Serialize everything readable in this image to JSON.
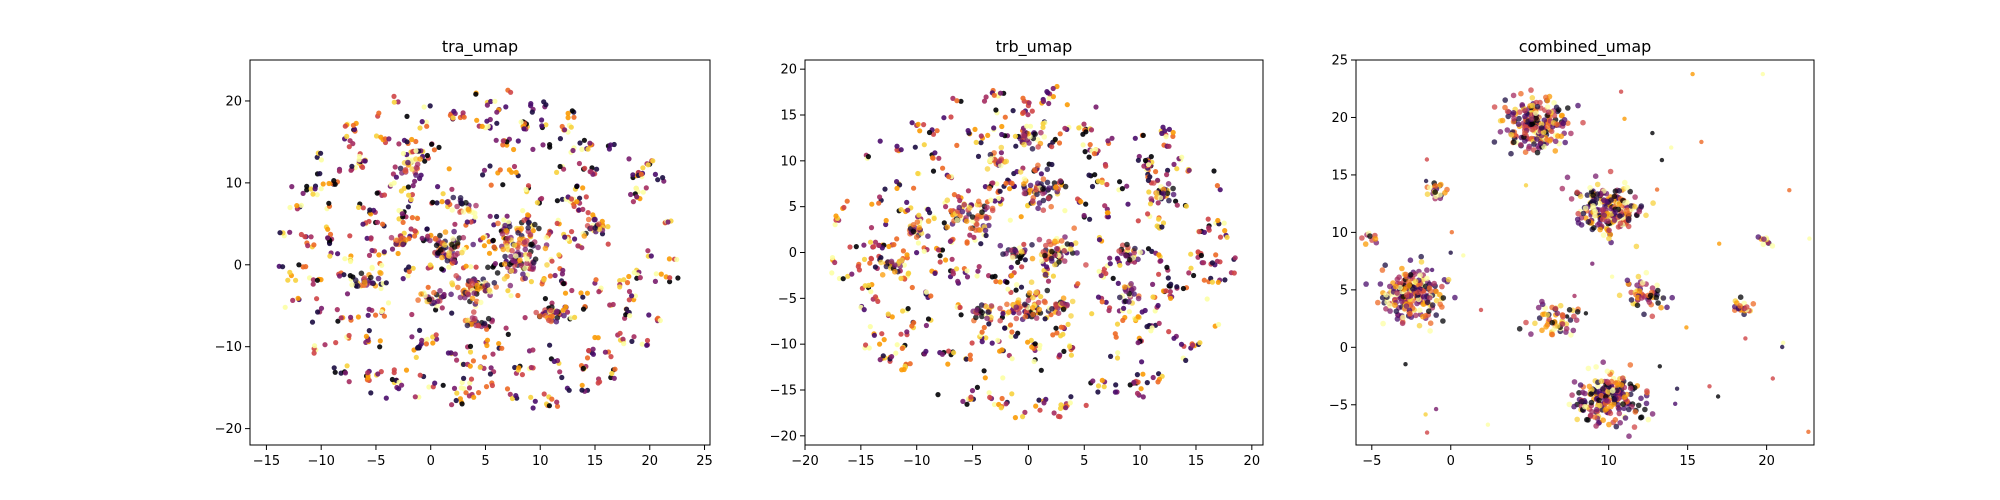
{
  "chart_data": [
    {
      "type": "scatter",
      "title": "tra_umap",
      "xlabel": "",
      "ylabel": "",
      "xlim": [
        -16.5,
        25.5
      ],
      "ylim": [
        -22,
        25
      ],
      "xticks": [
        -15,
        -10,
        -5,
        0,
        5,
        10,
        15,
        20,
        25
      ],
      "yticks": [
        -20,
        -10,
        0,
        10,
        20
      ],
      "grid": false,
      "colormap": "inferno",
      "distribution": "many small clusters spread roughly uniformly in a disk",
      "clusters": [
        {
          "x": 1.5,
          "y": 2,
          "size": "medium"
        },
        {
          "x": 4,
          "y": -3,
          "size": "medium"
        },
        {
          "x": 8,
          "y": 3.5,
          "size": "medium"
        },
        {
          "x": 8,
          "y": 0,
          "size": "medium"
        },
        {
          "x": 3,
          "y": 7,
          "size": "small"
        },
        {
          "x": -3,
          "y": 3,
          "size": "small"
        },
        {
          "x": 0,
          "y": -4,
          "size": "small"
        },
        {
          "x": 4,
          "y": -7,
          "size": "small"
        },
        {
          "x": 15,
          "y": 4.5,
          "size": "small"
        },
        {
          "x": -2,
          "y": 12,
          "size": "small"
        },
        {
          "x": 11,
          "y": -6,
          "size": "small"
        },
        {
          "x": -6,
          "y": -2,
          "size": "small"
        }
      ]
    },
    {
      "type": "scatter",
      "title": "trb_umap",
      "xlabel": "",
      "ylabel": "",
      "xlim": [
        -20,
        21
      ],
      "ylim": [
        -21,
        21
      ],
      "xticks": [
        -20,
        -15,
        -10,
        -5,
        0,
        5,
        10,
        15,
        20
      ],
      "yticks": [
        -20,
        -15,
        -10,
        -5,
        0,
        5,
        10,
        15,
        20
      ],
      "grid": false,
      "colormap": "inferno",
      "distribution": "many small clusters spread roughly uniformly in a disk",
      "clusters": [
        {
          "x": -5,
          "y": 4,
          "size": "medium"
        },
        {
          "x": 1,
          "y": 7,
          "size": "medium"
        },
        {
          "x": 2.5,
          "y": 0,
          "size": "medium"
        },
        {
          "x": 0,
          "y": -6,
          "size": "medium"
        },
        {
          "x": 3,
          "y": -6,
          "size": "small"
        },
        {
          "x": -4,
          "y": -6.5,
          "size": "small"
        },
        {
          "x": 9,
          "y": -4.5,
          "size": "small"
        },
        {
          "x": 9,
          "y": 0,
          "size": "small"
        },
        {
          "x": -10,
          "y": 2.5,
          "size": "small"
        },
        {
          "x": -12,
          "y": -1.5,
          "size": "small"
        },
        {
          "x": 12,
          "y": 6.5,
          "size": "small"
        },
        {
          "x": -3,
          "y": 10,
          "size": "small"
        },
        {
          "x": 0,
          "y": 12.5,
          "size": "small"
        },
        {
          "x": -1,
          "y": 0,
          "size": "small"
        }
      ]
    },
    {
      "type": "scatter",
      "title": "combined_umap",
      "xlabel": "",
      "ylabel": "",
      "xlim": [
        -6,
        23
      ],
      "ylim": [
        -8.5,
        25
      ],
      "xticks": [
        -5,
        0,
        5,
        10,
        15,
        20
      ],
      "yticks": [
        -5,
        0,
        5,
        10,
        15,
        20,
        25
      ],
      "grid": false,
      "colormap": "inferno",
      "distribution": "a few large dense clusters",
      "clusters": [
        {
          "x": 5.5,
          "y": 19.5,
          "size": "large"
        },
        {
          "x": 10,
          "y": 12,
          "size": "large"
        },
        {
          "x": -2.5,
          "y": 4.5,
          "size": "large"
        },
        {
          "x": 10,
          "y": -4.5,
          "size": "large"
        },
        {
          "x": 12.5,
          "y": 4.5,
          "size": "medium"
        },
        {
          "x": 6.5,
          "y": 2.5,
          "size": "medium"
        },
        {
          "x": 18.5,
          "y": 3.5,
          "size": "small"
        },
        {
          "x": -1,
          "y": 13.5,
          "size": "small"
        },
        {
          "x": 20,
          "y": 9,
          "size": "tiny"
        },
        {
          "x": -5,
          "y": 9.5,
          "size": "tiny"
        }
      ]
    }
  ]
}
